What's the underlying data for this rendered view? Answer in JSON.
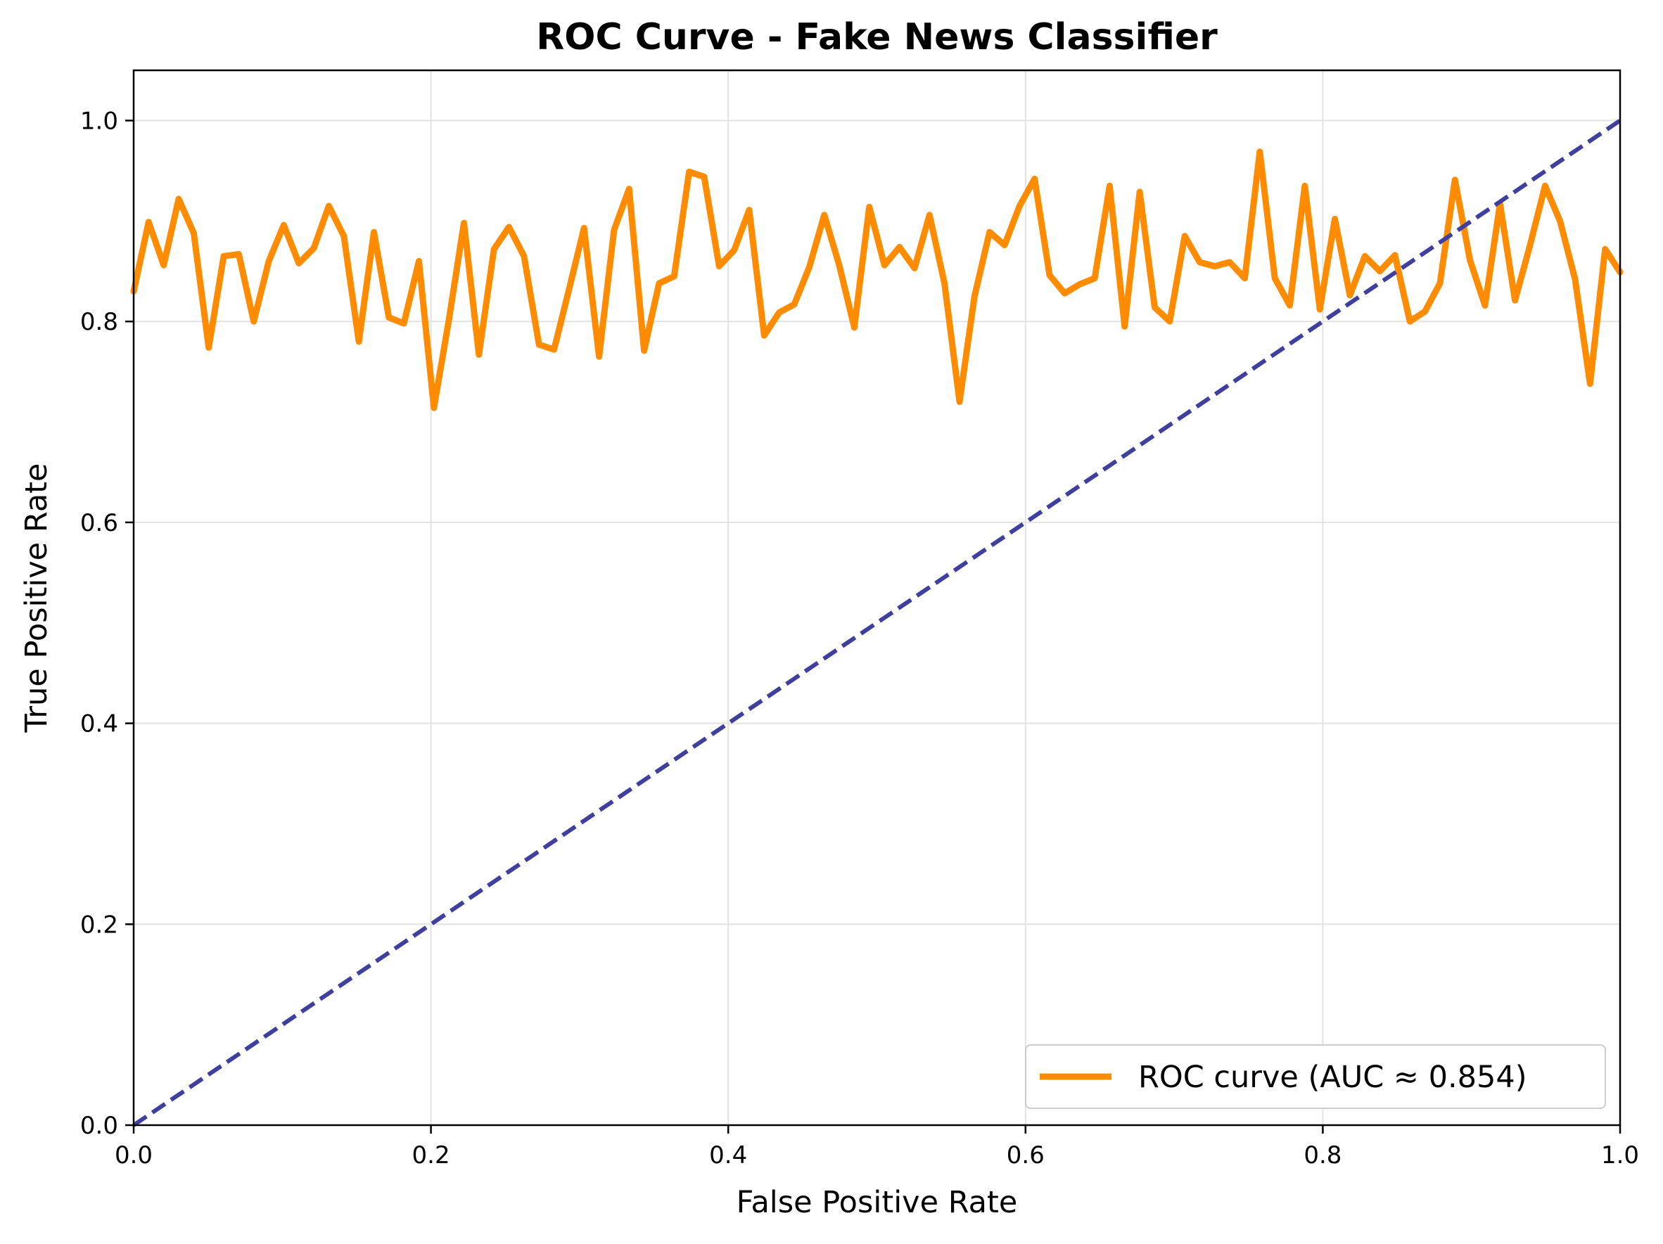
{
  "chart_data": {
    "type": "line",
    "title": "ROC Curve - Fake News Classifier",
    "xlabel": "False Positive Rate",
    "ylabel": "True Positive Rate",
    "xlim": [
      0.0,
      1.0
    ],
    "ylim": [
      0.0,
      1.05
    ],
    "xticks": [
      "0.0",
      "0.2",
      "0.4",
      "0.6",
      "0.8",
      "1.0"
    ],
    "yticks": [
      "0.0",
      "0.2",
      "0.4",
      "0.6",
      "0.8",
      "1.0"
    ],
    "grid": true,
    "legend_position": "lower-right",
    "series": [
      {
        "name": "ROC curve (AUC ≈ 0.854)",
        "color": "#ff8c00",
        "style": "solid",
        "x": [
          0.0,
          0.0101,
          0.0202,
          0.0303,
          0.0404,
          0.0505,
          0.0606,
          0.0707,
          0.0808,
          0.0909,
          0.101,
          0.1111,
          0.1212,
          0.1313,
          0.1414,
          0.1515,
          0.1616,
          0.1717,
          0.1818,
          0.1919,
          0.202,
          0.2121,
          0.2222,
          0.2323,
          0.2424,
          0.2525,
          0.2626,
          0.2727,
          0.2828,
          0.2929,
          0.303,
          0.3131,
          0.3232,
          0.3333,
          0.3434,
          0.3535,
          0.3636,
          0.3737,
          0.3838,
          0.3939,
          0.404,
          0.4141,
          0.4242,
          0.4343,
          0.4444,
          0.4545,
          0.4646,
          0.4747,
          0.4848,
          0.4949,
          0.5051,
          0.5152,
          0.5253,
          0.5354,
          0.5455,
          0.5556,
          0.5657,
          0.5758,
          0.5859,
          0.596,
          0.6061,
          0.6162,
          0.6263,
          0.6364,
          0.6465,
          0.6566,
          0.6667,
          0.6768,
          0.6869,
          0.697,
          0.7071,
          0.7172,
          0.7273,
          0.7374,
          0.7475,
          0.7576,
          0.7677,
          0.7778,
          0.7879,
          0.798,
          0.8081,
          0.8182,
          0.8283,
          0.8384,
          0.8485,
          0.8586,
          0.8687,
          0.8788,
          0.8889,
          0.899,
          0.9091,
          0.9192,
          0.9293,
          0.9394,
          0.9495,
          0.9596,
          0.9697,
          0.9798,
          0.9899,
          1.0
        ],
        "y": [
          0.83,
          0.899,
          0.856,
          0.922,
          0.888,
          0.774,
          0.865,
          0.867,
          0.8,
          0.86,
          0.896,
          0.858,
          0.873,
          0.915,
          0.885,
          0.78,
          0.889,
          0.804,
          0.798,
          0.86,
          0.714,
          0.802,
          0.898,
          0.767,
          0.872,
          0.894,
          0.865,
          0.777,
          0.772,
          0.832,
          0.893,
          0.765,
          0.891,
          0.932,
          0.771,
          0.838,
          0.845,
          0.949,
          0.944,
          0.855,
          0.871,
          0.911,
          0.786,
          0.809,
          0.817,
          0.854,
          0.906,
          0.856,
          0.794,
          0.914,
          0.856,
          0.874,
          0.853,
          0.906,
          0.838,
          0.72,
          0.825,
          0.889,
          0.876,
          0.915,
          0.942,
          0.846,
          0.828,
          0.837,
          0.843,
          0.935,
          0.795,
          0.929,
          0.814,
          0.8,
          0.885,
          0.859,
          0.855,
          0.859,
          0.843,
          0.969,
          0.843,
          0.816,
          0.935,
          0.812,
          0.902,
          0.826,
          0.865,
          0.85,
          0.866,
          0.8,
          0.81,
          0.838,
          0.941,
          0.861,
          0.816,
          0.917,
          0.821,
          0.876,
          0.935,
          0.9,
          0.842,
          0.738,
          0.872,
          0.849
        ]
      },
      {
        "name": "",
        "color": "#3f3fa0",
        "style": "dashed",
        "x": [
          0.0,
          1.0
        ],
        "y": [
          0.0,
          1.0
        ]
      }
    ]
  }
}
